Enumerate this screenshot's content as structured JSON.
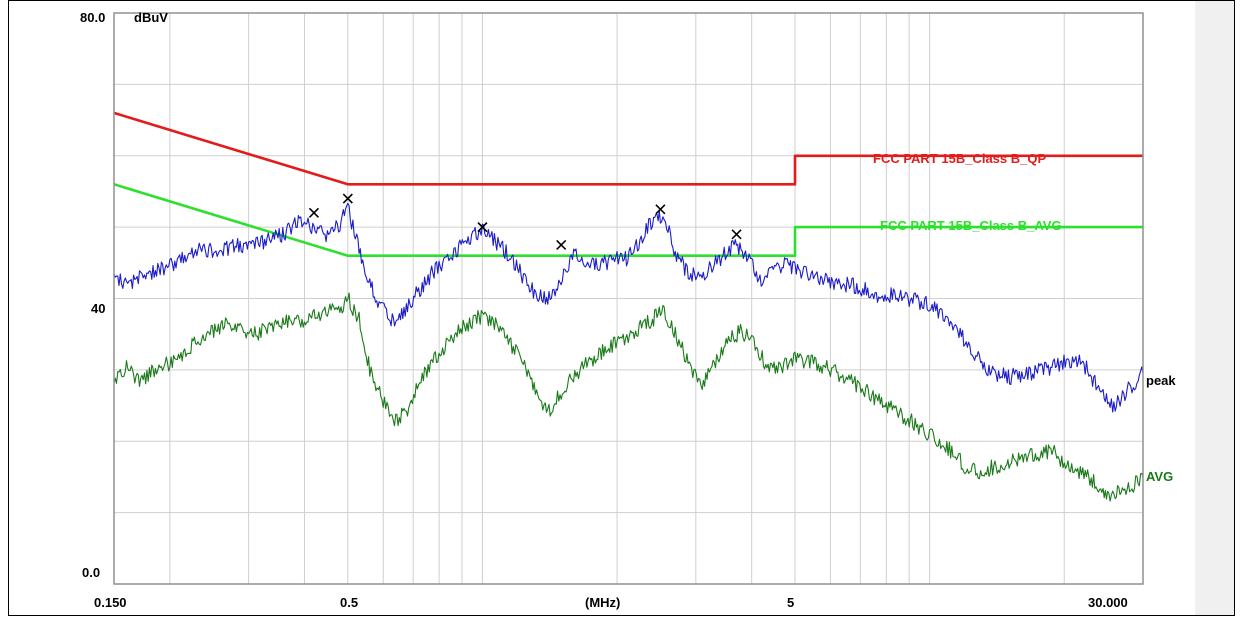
{
  "chart_data": {
    "type": "line",
    "ylabel": "dBuV",
    "xlabel": "(MHz)",
    "x_scale": "log",
    "xlim": [
      0.15,
      30
    ],
    "ylim": [
      0,
      80
    ],
    "grid": true,
    "y_tick_labels": [
      {
        "value": 0,
        "label": "0.0"
      },
      {
        "value": 40,
        "label": "40"
      },
      {
        "value": 80,
        "label": "80.0"
      }
    ],
    "x_tick_labels": [
      {
        "value": 0.15,
        "label": "0.150"
      },
      {
        "value": 0.5,
        "label": "0.5"
      },
      {
        "value": 5,
        "label": "5"
      },
      {
        "value": 30,
        "label": "30.000"
      }
    ],
    "series": [
      {
        "name": "FCC PART 15B_Class B_QP",
        "color": "#e31b1b",
        "points": [
          [
            0.15,
            66
          ],
          [
            0.5,
            56
          ],
          [
            5,
            56
          ],
          [
            5,
            60
          ],
          [
            30,
            60
          ]
        ]
      },
      {
        "name": "FCC PART 15B_Class B_AVG",
        "color": "#2ee02e",
        "points": [
          [
            0.15,
            56
          ],
          [
            0.5,
            46
          ],
          [
            5,
            46
          ],
          [
            5,
            50
          ],
          [
            30,
            50
          ]
        ]
      },
      {
        "name": "peak",
        "color": "#1c1cc8",
        "points": [
          [
            0.15,
            43.5
          ],
          [
            0.16,
            42
          ],
          [
            0.17,
            43
          ],
          [
            0.18,
            43.5
          ],
          [
            0.2,
            44.5
          ],
          [
            0.22,
            46
          ],
          [
            0.24,
            47
          ],
          [
            0.26,
            46.5
          ],
          [
            0.28,
            47.5
          ],
          [
            0.3,
            47.5
          ],
          [
            0.33,
            48
          ],
          [
            0.36,
            49
          ],
          [
            0.39,
            51
          ],
          [
            0.42,
            50
          ],
          [
            0.45,
            48.5
          ],
          [
            0.48,
            50.5
          ],
          [
            0.5,
            52.5
          ],
          [
            0.52,
            49
          ],
          [
            0.55,
            43
          ],
          [
            0.58,
            40
          ],
          [
            0.61,
            38
          ],
          [
            0.64,
            36
          ],
          [
            0.68,
            39
          ],
          [
            0.72,
            41
          ],
          [
            0.77,
            43.5
          ],
          [
            0.82,
            45
          ],
          [
            0.88,
            47
          ],
          [
            0.94,
            48.5
          ],
          [
            1.0,
            49.5
          ],
          [
            1.07,
            48
          ],
          [
            1.15,
            46
          ],
          [
            1.22,
            43.5
          ],
          [
            1.3,
            41
          ],
          [
            1.4,
            40
          ],
          [
            1.5,
            42.5
          ],
          [
            1.6,
            46
          ],
          [
            1.75,
            45
          ],
          [
            1.9,
            45
          ],
          [
            2.0,
            46
          ],
          [
            2.1,
            45.5
          ],
          [
            2.25,
            48
          ],
          [
            2.4,
            51
          ],
          [
            2.5,
            51.5
          ],
          [
            2.6,
            50
          ],
          [
            2.7,
            46.5
          ],
          [
            2.85,
            44
          ],
          [
            3.0,
            43
          ],
          [
            3.2,
            44
          ],
          [
            3.45,
            46
          ],
          [
            3.7,
            47.5
          ],
          [
            3.9,
            46
          ],
          [
            4.2,
            42
          ],
          [
            4.5,
            44
          ],
          [
            4.8,
            45
          ],
          [
            5.0,
            44
          ],
          [
            5.5,
            43
          ],
          [
            6.0,
            42.5
          ],
          [
            6.5,
            42
          ],
          [
            7.0,
            41.5
          ],
          [
            7.5,
            40.5
          ],
          [
            8.0,
            40.5
          ],
          [
            9.0,
            40
          ],
          [
            10.0,
            39
          ],
          [
            11.0,
            37.5
          ],
          [
            12.0,
            34
          ],
          [
            13.0,
            31
          ],
          [
            14.0,
            29.5
          ],
          [
            15.0,
            29
          ],
          [
            17.0,
            29.5
          ],
          [
            19.0,
            30.5
          ],
          [
            21.0,
            31.5
          ],
          [
            22.0,
            31
          ],
          [
            23.0,
            29
          ],
          [
            24.0,
            27
          ],
          [
            25.0,
            25.5
          ],
          [
            26.0,
            25
          ],
          [
            27.0,
            26
          ],
          [
            28.0,
            27.5
          ],
          [
            30.0,
            29.5
          ]
        ]
      },
      {
        "name": "AVG",
        "color": "#1a7a1a",
        "points": [
          [
            0.15,
            28
          ],
          [
            0.16,
            30.5
          ],
          [
            0.17,
            28.5
          ],
          [
            0.18,
            29.5
          ],
          [
            0.2,
            31
          ],
          [
            0.22,
            33
          ],
          [
            0.24,
            35
          ],
          [
            0.26,
            36
          ],
          [
            0.28,
            36.5
          ],
          [
            0.3,
            35
          ],
          [
            0.33,
            35.5
          ],
          [
            0.36,
            37
          ],
          [
            0.39,
            36.5
          ],
          [
            0.42,
            37.5
          ],
          [
            0.45,
            38
          ],
          [
            0.48,
            38.5
          ],
          [
            0.5,
            40
          ],
          [
            0.53,
            37
          ],
          [
            0.56,
            30
          ],
          [
            0.6,
            25.5
          ],
          [
            0.64,
            23
          ],
          [
            0.68,
            24.5
          ],
          [
            0.72,
            28
          ],
          [
            0.77,
            31
          ],
          [
            0.83,
            33.5
          ],
          [
            0.9,
            36
          ],
          [
            0.96,
            37
          ],
          [
            1.0,
            37.5
          ],
          [
            1.07,
            36.5
          ],
          [
            1.15,
            34
          ],
          [
            1.25,
            30
          ],
          [
            1.33,
            26
          ],
          [
            1.4,
            24
          ],
          [
            1.5,
            27
          ],
          [
            1.65,
            30
          ],
          [
            1.8,
            32
          ],
          [
            2.0,
            34
          ],
          [
            2.2,
            35.5
          ],
          [
            2.4,
            37
          ],
          [
            2.5,
            38.5
          ],
          [
            2.6,
            37
          ],
          [
            2.75,
            34
          ],
          [
            2.9,
            30.5
          ],
          [
            3.1,
            27.5
          ],
          [
            3.3,
            31
          ],
          [
            3.55,
            34
          ],
          [
            3.8,
            35.5
          ],
          [
            4.0,
            34
          ],
          [
            4.3,
            31
          ],
          [
            4.6,
            30
          ],
          [
            5.0,
            31.5
          ],
          [
            5.5,
            31
          ],
          [
            6.0,
            30
          ],
          [
            6.6,
            28.5
          ],
          [
            7.2,
            27
          ],
          [
            8.0,
            25
          ],
          [
            9.0,
            23
          ],
          [
            10.0,
            21
          ],
          [
            11.0,
            19
          ],
          [
            12.0,
            16.5
          ],
          [
            13.0,
            15.5
          ],
          [
            14.0,
            16.5
          ],
          [
            16.0,
            17.5
          ],
          [
            18.0,
            18.5
          ],
          [
            19.0,
            18.5
          ],
          [
            20.0,
            17
          ],
          [
            22.0,
            15.5
          ],
          [
            24.0,
            13.5
          ],
          [
            25.0,
            12
          ],
          [
            26.0,
            12.5
          ],
          [
            28.0,
            13.5
          ],
          [
            30.0,
            15
          ]
        ]
      }
    ],
    "markers": [
      {
        "x": 0.42,
        "y": 52
      },
      {
        "x": 0.5,
        "y": 54
      },
      {
        "x": 1.0,
        "y": 50
      },
      {
        "x": 1.5,
        "y": 47.5
      },
      {
        "x": 2.5,
        "y": 52.5
      },
      {
        "x": 3.7,
        "y": 49
      }
    ]
  }
}
